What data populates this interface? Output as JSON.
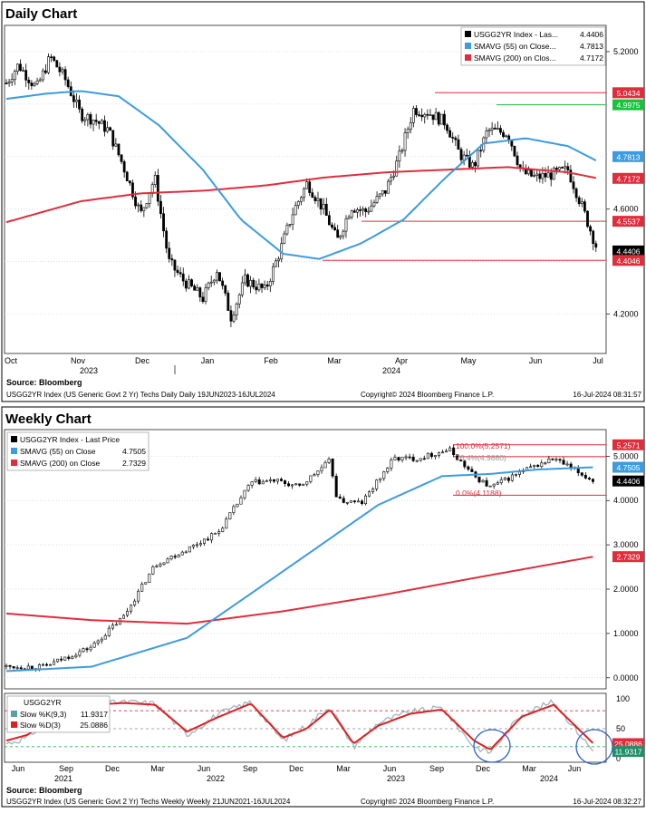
{
  "colors": {
    "sma55": "#3d9be0",
    "sma200": "#e02d3c",
    "candle_up": "#ffffff",
    "candle_down": "#000000",
    "hline_red": "#e02d3c",
    "hline_green": "#19c23a",
    "fib_line": "#e02d3c",
    "stoch_k": "#9fb4c2",
    "stoch_d": "#e02020",
    "circle": "#2a5fd0",
    "tag_red": "#e02d3c",
    "tag_blue": "#3d9be0",
    "tag_green": "#19c23a",
    "tag_black": "#000000"
  },
  "daily": {
    "title": "Daily Chart",
    "legend": [
      {
        "icon": "black",
        "name": "USGG2YR Index - Las...",
        "value": "4.4406"
      },
      {
        "icon": "blue",
        "name": "SMAVG (55)   on Close...",
        "value": "4.7813"
      },
      {
        "icon": "red",
        "name": "SMAVG (200)   on Clos...",
        "value": "4.7172"
      }
    ],
    "source": "Source: Bloomberg",
    "footer_left": "USGG2YR Index (US Generic Govt 2 Yr) Techs Daily  Daily 19JUN2023-16JUL2024",
    "footer_mid": "Copyright© 2024 Bloomberg Finance L.P.",
    "footer_right": "16-Jul-2024 08:31:57",
    "xlabels": [
      "Oct",
      "Nov",
      "Dec",
      "Jan",
      "Feb",
      "Mar",
      "Apr",
      "May",
      "Jun",
      "Jul"
    ],
    "years": [
      "2023",
      "2024"
    ],
    "yticks": [
      "5.2000",
      "4.6000",
      "4.2000"
    ],
    "tags": [
      {
        "label": "5.0434",
        "color": "red"
      },
      {
        "label": "4.9975",
        "color": "green"
      },
      {
        "label": "4.7813",
        "color": "blue"
      },
      {
        "label": "4.7172",
        "color": "red"
      },
      {
        "label": "4.5537",
        "color": "red"
      },
      {
        "label": "4.4406",
        "color": "black"
      },
      {
        "label": "4.4046",
        "color": "red"
      }
    ]
  },
  "weekly": {
    "title": "Weekly Chart",
    "legend": [
      {
        "icon": "black",
        "name": "USGG2YR Index - Last Price",
        "value": ""
      },
      {
        "icon": "blue",
        "name": "SMAVG (55)   on Close",
        "value": "4.7505"
      },
      {
        "icon": "red",
        "name": "SMAVG (200)   on Close",
        "value": "2.7329"
      }
    ],
    "fib": [
      "100.0%(5.2571)",
      "76.4%(4.9880)",
      "0.0%(4.1188)"
    ],
    "yticks": [
      "5.0000",
      "4.0000",
      "3.0000",
      "2.0000",
      "1.0000",
      "0.0000"
    ],
    "tags": [
      {
        "label": "5.2571",
        "color": "red"
      },
      {
        "label": "4.7505",
        "color": "blue"
      },
      {
        "label": "4.4406",
        "color": "black"
      },
      {
        "label": "2.7329",
        "color": "red"
      }
    ],
    "stoch_legend": {
      "title": "USGG2YR",
      "k_label": "Slow %K(9,3)",
      "k_value": "11.9317",
      "d_label": "Slow %D(3)",
      "d_value": "25.0886"
    },
    "stoch_yticks": [
      "100",
      "50",
      "0"
    ],
    "stoch_tags": [
      {
        "label": "25.0886",
        "color": "red"
      },
      {
        "label": "11.9317",
        "color": "green"
      }
    ],
    "xlabels": [
      "Jun",
      "Sep",
      "Dec",
      "Mar",
      "Jun",
      "Sep",
      "Dec",
      "Mar",
      "Jun",
      "Sep",
      "Dec",
      "Mar",
      "Jun"
    ],
    "years": [
      "2021",
      "2022",
      "2023",
      "2024"
    ],
    "source": "Source: Bloomberg",
    "footer_left": "USGG2YR Index (US Generic Govt 2 Yr) Techs Weekly  Weekly 21JUN2021-16JUL2024",
    "footer_mid": "Copyright© 2024 Bloomberg Finance L.P.",
    "footer_right": "16-Jul-2024 08:32:27"
  },
  "chart_data": [
    {
      "type": "candlestick",
      "title": "Daily Chart",
      "ylim": [
        4.05,
        5.3
      ],
      "x_start": "2023-09-25",
      "x_end": "2024-07-16",
      "series": [
        {
          "name": "USGG2YR Index - Last Price",
          "x": [
            "2023-09-25",
            "2023-10-01",
            "2023-10-10",
            "2023-10-17",
            "2023-10-24",
            "2023-11-01",
            "2023-11-08",
            "2023-11-15",
            "2023-11-22",
            "2023-12-01",
            "2023-12-08",
            "2023-12-15",
            "2023-12-22",
            "2024-01-01",
            "2024-01-08",
            "2024-01-15",
            "2024-01-22",
            "2024-02-01",
            "2024-02-08",
            "2024-02-15",
            "2024-02-22",
            "2024-03-01",
            "2024-03-08",
            "2024-03-15",
            "2024-03-22",
            "2024-04-01",
            "2024-04-08",
            "2024-04-15",
            "2024-04-22",
            "2024-05-01",
            "2024-05-08",
            "2024-05-15",
            "2024-05-22",
            "2024-06-01",
            "2024-06-08",
            "2024-06-15",
            "2024-06-22",
            "2024-07-01",
            "2024-07-08",
            "2024-07-16"
          ],
          "values": [
            5.08,
            5.15,
            5.06,
            5.18,
            5.1,
            4.96,
            4.94,
            4.9,
            4.77,
            4.58,
            4.72,
            4.4,
            4.33,
            4.26,
            4.37,
            4.19,
            4.33,
            4.29,
            4.43,
            4.59,
            4.7,
            4.6,
            4.48,
            4.61,
            4.59,
            4.67,
            4.8,
            4.98,
            4.97,
            4.93,
            4.81,
            4.76,
            4.9,
            4.89,
            4.74,
            4.72,
            4.73,
            4.75,
            4.61,
            4.44
          ]
        },
        {
          "name": "SMAVG (55) on Close",
          "x": [
            "2023-09-25",
            "2023-10-15",
            "2023-11-01",
            "2023-11-20",
            "2023-12-10",
            "2024-01-01",
            "2024-01-20",
            "2024-02-10",
            "2024-02-28",
            "2024-03-20",
            "2024-04-10",
            "2024-05-01",
            "2024-05-20",
            "2024-06-10",
            "2024-07-01",
            "2024-07-16"
          ],
          "values": [
            5.02,
            5.04,
            5.05,
            5.03,
            4.92,
            4.75,
            4.56,
            4.43,
            4.41,
            4.47,
            4.56,
            4.72,
            4.85,
            4.87,
            4.84,
            4.7813
          ]
        },
        {
          "name": "SMAVG (200) on Close",
          "x": [
            "2023-09-25",
            "2023-11-01",
            "2023-12-01",
            "2024-01-01",
            "2024-02-01",
            "2024-03-01",
            "2024-04-01",
            "2024-05-01",
            "2024-06-01",
            "2024-07-01",
            "2024-07-16"
          ],
          "values": [
            4.55,
            4.63,
            4.66,
            4.67,
            4.69,
            4.72,
            4.74,
            4.75,
            4.76,
            4.74,
            4.7172
          ]
        }
      ],
      "hlines": [
        {
          "value": 5.0434,
          "color": "red"
        },
        {
          "value": 4.9975,
          "color": "green"
        },
        {
          "value": 4.5537,
          "color": "red"
        },
        {
          "value": 4.4046,
          "color": "red"
        }
      ]
    },
    {
      "type": "candlestick",
      "title": "Weekly Chart",
      "ylim": [
        -0.25,
        5.6
      ],
      "x_start": "2021-06-21",
      "x_end": "2024-07-16",
      "series": [
        {
          "name": "USGG2YR Index - Last Price",
          "x": [
            "2021-06-21",
            "2021-09-01",
            "2021-12-01",
            "2022-02-01",
            "2022-04-01",
            "2022-06-01",
            "2022-08-01",
            "2022-10-01",
            "2022-11-15",
            "2023-01-01",
            "2023-03-01",
            "2023-03-15",
            "2023-05-01",
            "2023-07-01",
            "2023-08-15",
            "2023-10-15",
            "2023-12-01",
            "2024-01-01",
            "2024-03-01",
            "2024-05-01",
            "2024-07-16"
          ],
          "values": [
            0.25,
            0.25,
            0.7,
            1.4,
            2.55,
            2.9,
            3.3,
            4.4,
            4.45,
            4.3,
            4.9,
            4.0,
            3.95,
            4.95,
            4.95,
            5.15,
            4.55,
            4.3,
            4.65,
            4.95,
            4.44
          ]
        },
        {
          "name": "SMAVG (55) on Close",
          "x": [
            "2021-06-21",
            "2021-12-01",
            "2022-06-01",
            "2022-12-01",
            "2023-06-01",
            "2023-10-01",
            "2024-01-01",
            "2024-04-01",
            "2024-07-16"
          ],
          "values": [
            0.15,
            0.25,
            0.9,
            2.4,
            3.9,
            4.55,
            4.6,
            4.7,
            4.7505
          ]
        },
        {
          "name": "SMAVG (200) on Close",
          "x": [
            "2021-06-21",
            "2021-12-01",
            "2022-06-01",
            "2022-12-01",
            "2023-06-01",
            "2023-12-01",
            "2024-07-16"
          ],
          "values": [
            1.45,
            1.3,
            1.22,
            1.5,
            1.85,
            2.25,
            2.7329
          ]
        }
      ],
      "hlines": [
        {
          "value": 5.2571,
          "color": "red"
        },
        {
          "value": 4.988,
          "color": "red"
        },
        {
          "value": 4.1188,
          "color": "red"
        }
      ]
    },
    {
      "type": "line",
      "title": "USGG2YR",
      "ylim": [
        0,
        100
      ],
      "x_start": "2021-06-21",
      "x_end": "2024-07-16",
      "series": [
        {
          "name": "Slow %K(9,3)",
          "x": [
            "2021-06-21",
            "2021-08-01",
            "2021-10-01",
            "2021-12-01",
            "2022-02-01",
            "2022-04-01",
            "2022-06-01",
            "2022-08-01",
            "2022-10-01",
            "2022-12-01",
            "2023-01-15",
            "2023-03-01",
            "2023-04-15",
            "2023-06-01",
            "2023-08-01",
            "2023-10-01",
            "2023-12-01",
            "2024-01-01",
            "2024-03-01",
            "2024-05-01",
            "2024-07-16"
          ],
          "values": [
            25,
            35,
            85,
            92,
            95,
            92,
            40,
            75,
            95,
            30,
            55,
            88,
            20,
            60,
            78,
            85,
            20,
            10,
            75,
            95,
            11.9317
          ]
        },
        {
          "name": "Slow %D(3)",
          "x": [
            "2021-06-21",
            "2021-08-01",
            "2021-10-01",
            "2021-12-01",
            "2022-02-01",
            "2022-04-01",
            "2022-06-01",
            "2022-08-01",
            "2022-10-01",
            "2022-12-01",
            "2023-01-15",
            "2023-03-01",
            "2023-04-15",
            "2023-06-01",
            "2023-08-01",
            "2023-10-01",
            "2023-12-01",
            "2024-01-01",
            "2024-03-01",
            "2024-05-01",
            "2024-07-16"
          ],
          "values": [
            30,
            40,
            80,
            90,
            93,
            90,
            45,
            70,
            92,
            35,
            50,
            82,
            25,
            55,
            75,
            82,
            30,
            15,
            70,
            90,
            25.0886
          ]
        }
      ]
    }
  ]
}
